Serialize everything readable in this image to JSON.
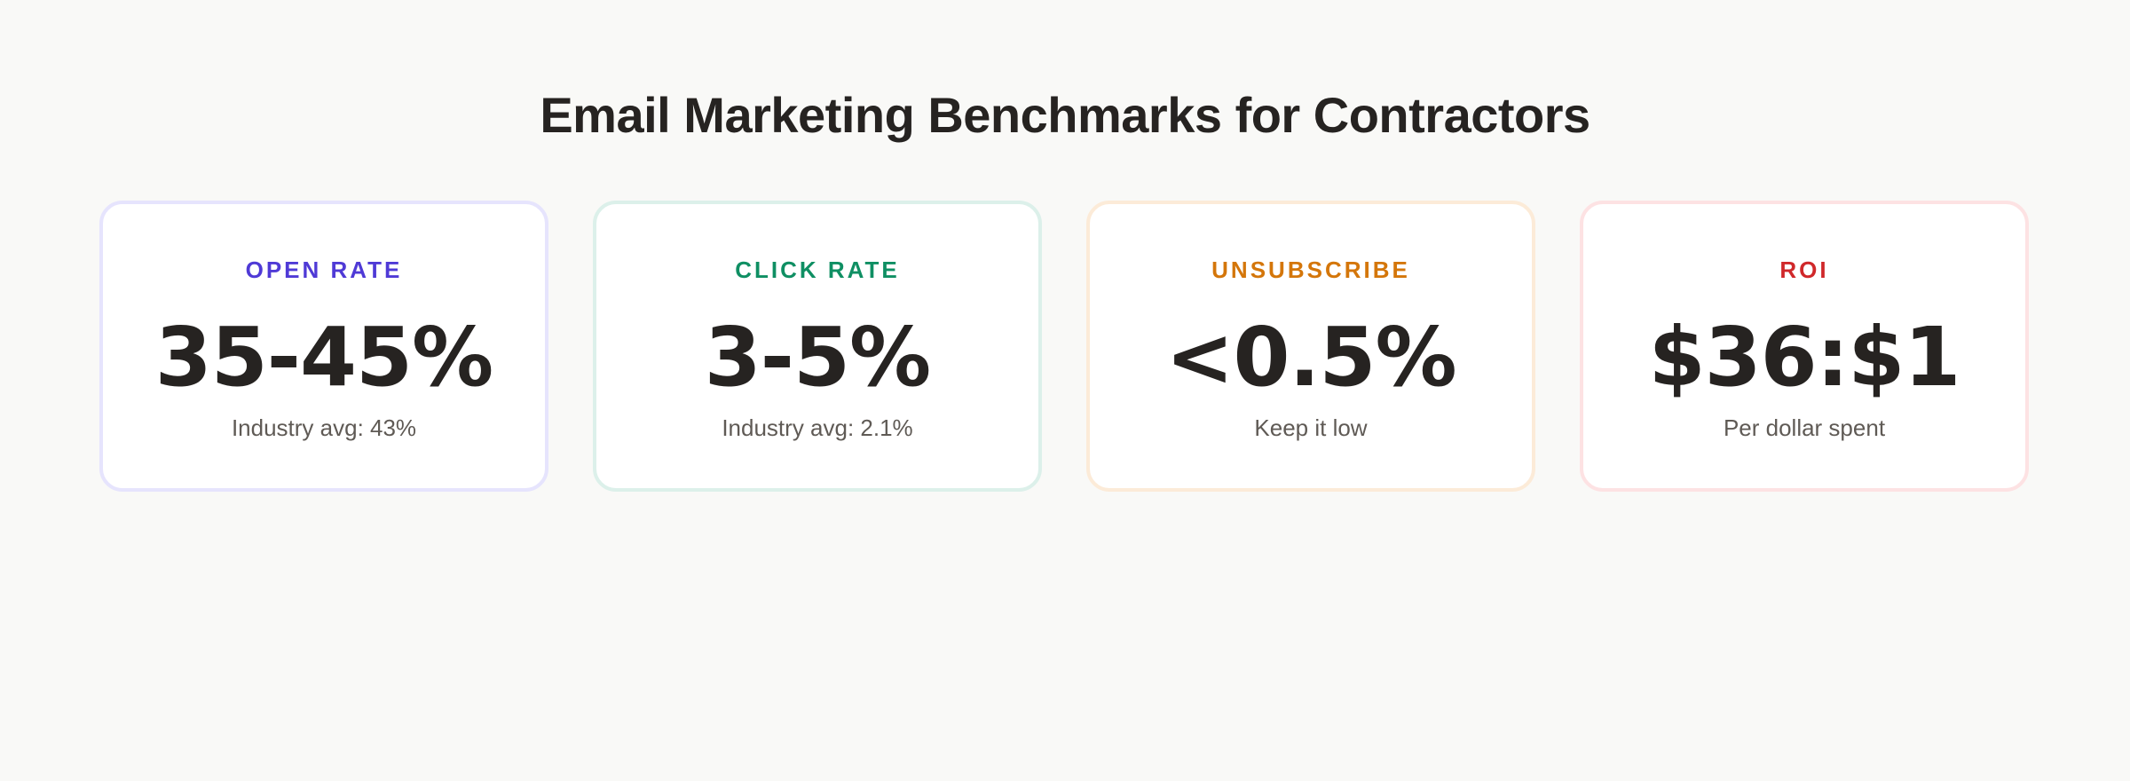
{
  "header": {
    "title": "Email Marketing Benchmarks for Contractors"
  },
  "cards": [
    {
      "label": "OPEN RATE",
      "value": "35-45%",
      "sub": "Industry avg: 43%",
      "accent_color": "#4f3ad6",
      "border_color": "#e6e4fd"
    },
    {
      "label": "CLICK RATE",
      "value": "3-5%",
      "sub": "Industry avg: 2.1%",
      "accent_color": "#0f8f63",
      "border_color": "#dcf0ea"
    },
    {
      "label": "UNSUBSCRIBE",
      "value": "<0.5%",
      "sub": "Keep it low",
      "accent_color": "#d4760a",
      "border_color": "#fcebd8"
    },
    {
      "label": "ROI",
      "value": "$36:$1",
      "sub": "Per dollar spent",
      "accent_color": "#d0282a",
      "border_color": "#fde2e3"
    }
  ]
}
